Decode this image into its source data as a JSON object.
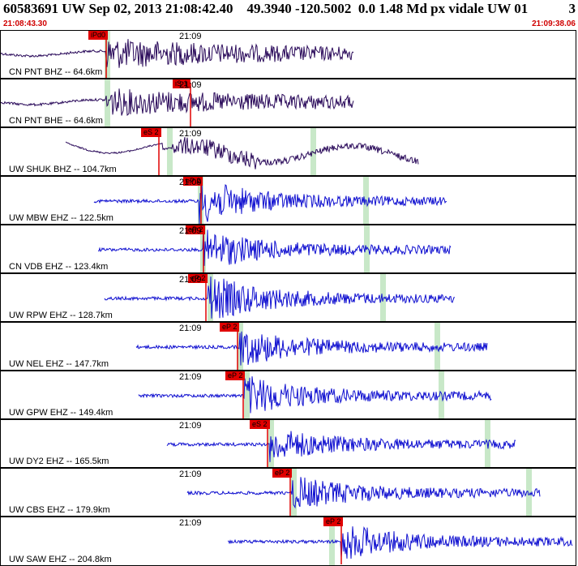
{
  "header": {
    "title": "60583691 UW Sep 02, 2013 21:08:42.40    49.3940 -120.5002  0.0 1.48 Md px vidale UW 01",
    "count": "3",
    "start_time": "21:08:43.30",
    "end_time": "21:09:38.06"
  },
  "colors": {
    "trace_dark": "#2a0a5a",
    "trace_blue": "#1010d0",
    "pick": "#e00000",
    "window": "#c8e8c8"
  },
  "traces": [
    {
      "label": "CN PNT BHZ -- 64.6km",
      "time_mark": "21:09",
      "pick": "iPd0",
      "style": "dark"
    },
    {
      "label": "CN PNT BHE -- 64.6km",
      "time_mark": "21:09",
      "pick": "iS 1",
      "style": "dark"
    },
    {
      "label": "UW SHUK BHZ -- 104.7km",
      "time_mark": "21:09",
      "pick": "eS 2",
      "style": "dark"
    },
    {
      "label": "UW MBW EHZ -- 122.5km",
      "time_mark": "21:09",
      "pick": "eP 2",
      "style": "blue"
    },
    {
      "label": "CN VDB EHZ -- 123.4km",
      "time_mark": "21:09",
      "pick": "eP 2",
      "style": "blue"
    },
    {
      "label": "UW RPW EHZ -- 128.7km",
      "time_mark": "21:09",
      "pick": "eP 2",
      "style": "blue"
    },
    {
      "label": "UW NEL EHZ -- 147.7km",
      "time_mark": "21:09",
      "pick": "eP 2",
      "style": "blue"
    },
    {
      "label": "UW GPW EHZ -- 149.4km",
      "time_mark": "21:09",
      "pick": "eP 2",
      "style": "blue"
    },
    {
      "label": "UW DY2 EHZ -- 165.5km",
      "time_mark": "21:09",
      "pick": "eS 2",
      "style": "blue"
    },
    {
      "label": "UW CBS EHZ -- 179.9km",
      "time_mark": "21:09",
      "pick": "eP 2",
      "style": "blue"
    },
    {
      "label": "UW SAW EHZ -- 204.8km",
      "time_mark": "21:09",
      "pick": "eP 2",
      "style": "blue"
    }
  ]
}
